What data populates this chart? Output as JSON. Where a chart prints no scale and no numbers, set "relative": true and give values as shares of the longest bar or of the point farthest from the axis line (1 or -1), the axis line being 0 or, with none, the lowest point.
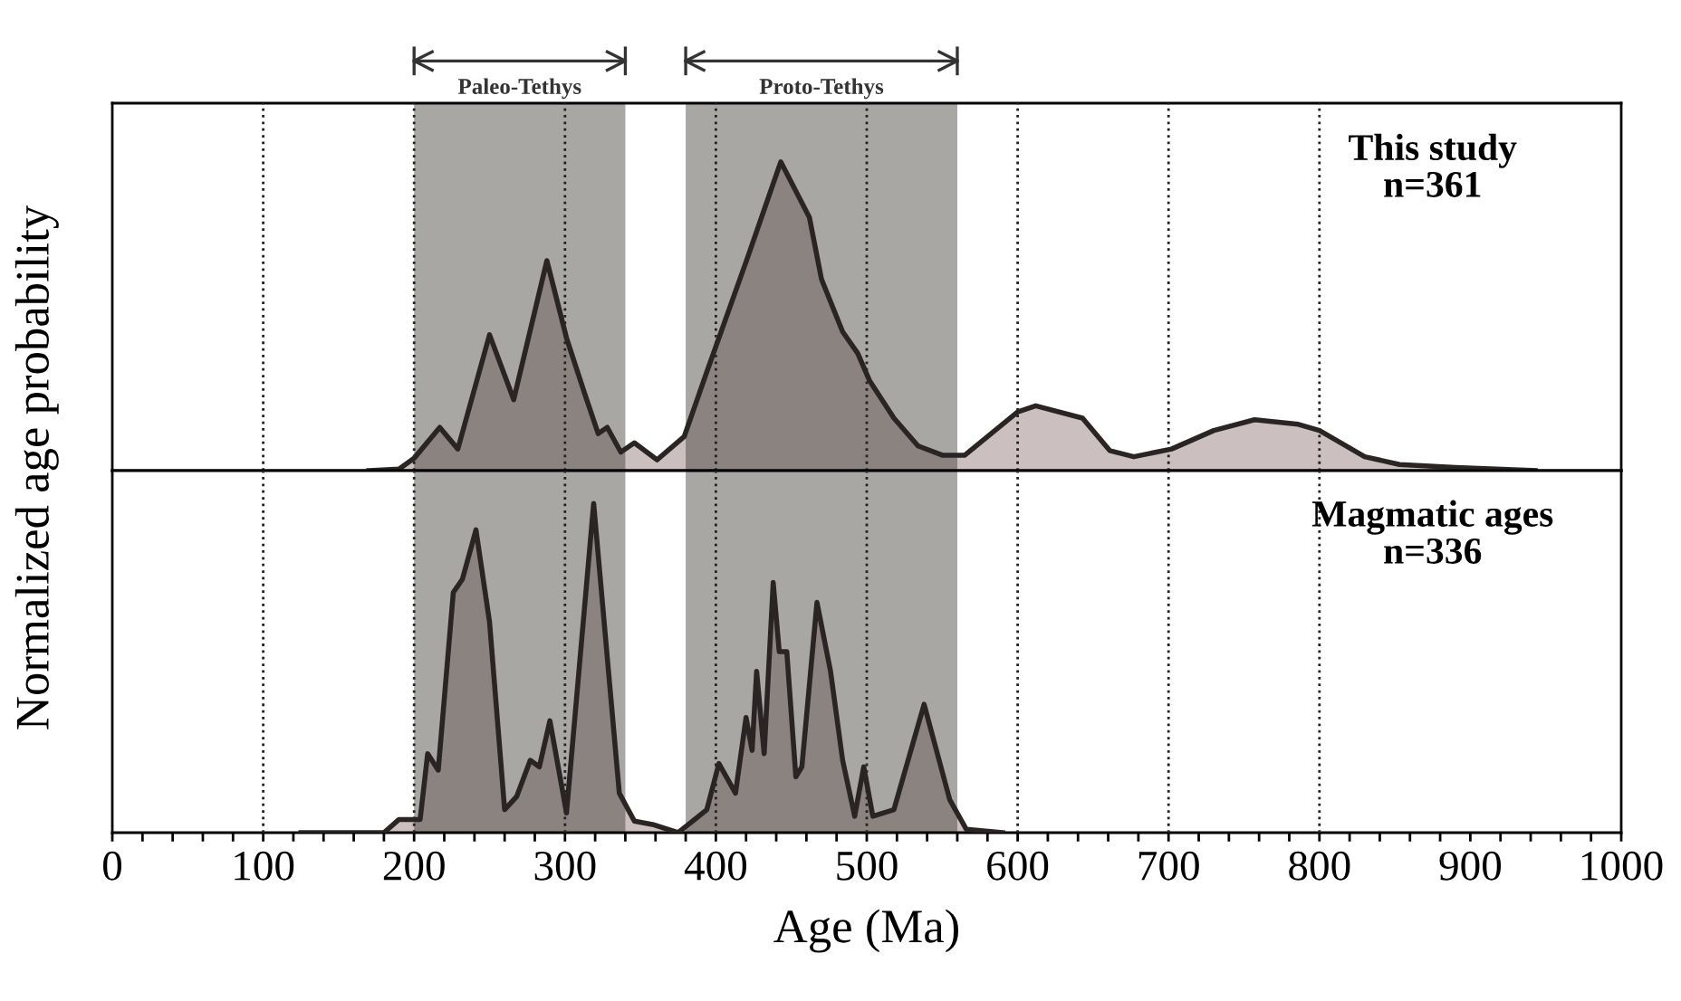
{
  "chart_data": [
    {
      "type": "area",
      "relative": true,
      "ylabel": "Normalized age probability",
      "xlim": [
        0,
        1000
      ],
      "tick_labels": false,
      "legend": false,
      "grid": false,
      "series": [
        {
          "color": "#cbbfc0",
          "x": [
            170,
            190,
            200,
            217,
            229,
            250,
            266,
            288,
            301,
            313,
            322,
            328,
            337,
            346,
            361,
            379,
            394,
            421,
            443,
            462,
            470,
            484,
            494,
            502,
            518,
            534,
            550,
            565,
            600,
            612,
            643,
            661,
            677,
            702,
            730,
            757,
            786,
            800,
            830,
            853,
            890,
            943
          ],
          "values": [
            0,
            0.005,
            0.04,
            0.14,
            0.07,
            0.44,
            0.23,
            0.68,
            0.43,
            0.25,
            0.12,
            0.14,
            0.06,
            0.09,
            0.035,
            0.11,
            0.32,
            0.69,
            1.0,
            0.82,
            0.62,
            0.45,
            0.38,
            0.29,
            0.17,
            0.08,
            0.05,
            0.05,
            0.19,
            0.21,
            0.17,
            0.065,
            0.045,
            0.07,
            0.13,
            0.165,
            0.15,
            0.13,
            0.045,
            0.02,
            0.01,
            0
          ]
        }
      ],
      "bands": [
        {
          "axis": "x",
          "from": 200,
          "to": 340,
          "label": "Paleo-Tethys",
          "color": "#a8a7a3"
        },
        {
          "axis": "x",
          "from": 380,
          "to": 560,
          "label": "Proto-Tethys",
          "color": "#a8a7a3"
        }
      ],
      "ref_lines": [
        {
          "axis": "x",
          "value": 100,
          "line_style": "dotted"
        },
        {
          "axis": "x",
          "value": 200,
          "line_style": "dotted"
        },
        {
          "axis": "x",
          "value": 300,
          "line_style": "dotted"
        },
        {
          "axis": "x",
          "value": 400,
          "line_style": "dotted"
        },
        {
          "axis": "x",
          "value": 500,
          "line_style": "dotted"
        },
        {
          "axis": "x",
          "value": 600,
          "line_style": "dotted"
        },
        {
          "axis": "x",
          "value": 700,
          "line_style": "dotted"
        },
        {
          "axis": "x",
          "value": 800,
          "line_style": "dotted"
        }
      ],
      "annotations": [
        "This study\nn=361"
      ]
    },
    {
      "type": "area",
      "relative": true,
      "xlabel": "Age (Ma)",
      "xlim": [
        0,
        1000
      ],
      "tick_labels": "x",
      "legend": false,
      "grid": false,
      "xticks": [
        0,
        {
          "value": 20,
          "label": null
        },
        {
          "value": 40,
          "label": null
        },
        {
          "value": 60,
          "label": null
        },
        {
          "value": 80,
          "label": null
        },
        100,
        {
          "value": 120,
          "label": null
        },
        {
          "value": 140,
          "label": null
        },
        {
          "value": 160,
          "label": null
        },
        {
          "value": 180,
          "label": null
        },
        200,
        {
          "value": 220,
          "label": null
        },
        {
          "value": 240,
          "label": null
        },
        {
          "value": 260,
          "label": null
        },
        {
          "value": 280,
          "label": null
        },
        300,
        {
          "value": 320,
          "label": null
        },
        {
          "value": 340,
          "label": null
        },
        {
          "value": 360,
          "label": null
        },
        {
          "value": 380,
          "label": null
        },
        400,
        {
          "value": 420,
          "label": null
        },
        {
          "value": 440,
          "label": null
        },
        {
          "value": 460,
          "label": null
        },
        {
          "value": 480,
          "label": null
        },
        500,
        {
          "value": 520,
          "label": null
        },
        {
          "value": 540,
          "label": null
        },
        {
          "value": 560,
          "label": null
        },
        {
          "value": 580,
          "label": null
        },
        600,
        {
          "value": 620,
          "label": null
        },
        {
          "value": 640,
          "label": null
        },
        {
          "value": 660,
          "label": null
        },
        {
          "value": 680,
          "label": null
        },
        700,
        {
          "value": 720,
          "label": null
        },
        {
          "value": 740,
          "label": null
        },
        {
          "value": 760,
          "label": null
        },
        {
          "value": 780,
          "label": null
        },
        800,
        {
          "value": 820,
          "label": null
        },
        {
          "value": 840,
          "label": null
        },
        {
          "value": 860,
          "label": null
        },
        {
          "value": 880,
          "label": null
        },
        900,
        {
          "value": 920,
          "label": null
        },
        {
          "value": 940,
          "label": null
        },
        {
          "value": 960,
          "label": null
        },
        {
          "value": 980,
          "label": null
        },
        1000
      ],
      "series": [
        {
          "color": "#cbbfc0",
          "x": [
            125,
            180,
            190,
            204,
            209,
            216,
            226,
            232,
            241,
            250,
            260,
            268,
            277,
            283,
            290,
            301,
            319,
            336,
            346,
            358,
            375,
            394,
            402,
            413,
            420,
            424,
            427,
            432,
            438,
            442,
            447,
            453,
            457,
            467,
            476,
            484,
            492,
            498,
            504,
            518,
            538,
            555,
            566,
            590
          ],
          "values": [
            0,
            0,
            0.04,
            0.04,
            0.24,
            0.19,
            0.73,
            0.77,
            0.92,
            0.64,
            0.07,
            0.11,
            0.22,
            0.2,
            0.34,
            0.06,
            1.0,
            0.12,
            0.035,
            0.025,
            0,
            0.07,
            0.21,
            0.12,
            0.35,
            0.25,
            0.49,
            0.24,
            0.76,
            0.55,
            0.55,
            0.17,
            0.2,
            0.7,
            0.49,
            0.22,
            0.05,
            0.2,
            0.05,
            0.07,
            0.39,
            0.1,
            0.01,
            0
          ]
        }
      ],
      "bands": [
        {
          "axis": "x",
          "from": 200,
          "to": 340,
          "color": "#a8a7a3"
        },
        {
          "axis": "x",
          "from": 380,
          "to": 560,
          "color": "#a8a7a3"
        }
      ],
      "ref_lines": [
        {
          "axis": "x",
          "value": 100,
          "line_style": "dotted"
        },
        {
          "axis": "x",
          "value": 200,
          "line_style": "dotted"
        },
        {
          "axis": "x",
          "value": 300,
          "line_style": "dotted"
        },
        {
          "axis": "x",
          "value": 400,
          "line_style": "dotted"
        },
        {
          "axis": "x",
          "value": 500,
          "line_style": "dotted"
        },
        {
          "axis": "x",
          "value": 600,
          "line_style": "dotted"
        },
        {
          "axis": "x",
          "value": 700,
          "line_style": "dotted"
        },
        {
          "axis": "x",
          "value": 800,
          "line_style": "dotted"
        }
      ],
      "annotations": [
        "Magmatic ages\nn=336"
      ]
    }
  ]
}
